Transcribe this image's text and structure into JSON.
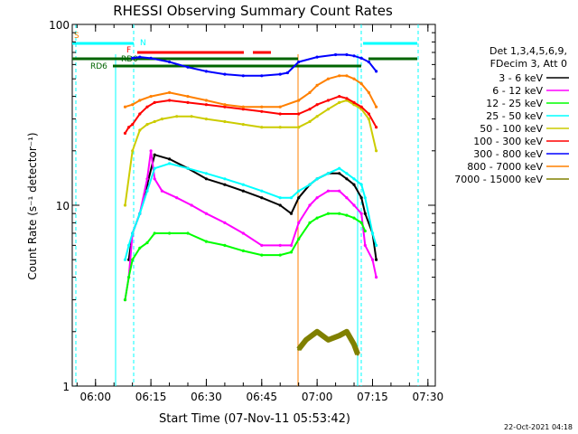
{
  "chart_data": {
    "type": "line",
    "title": "RHESSI Observing Summary Count Rates",
    "xlabel": "Start Time (07-Nov-11 05:53:42)",
    "ylabel": "Count Rate (s⁻¹ detector⁻¹)",
    "y_scale": "log",
    "ylim": [
      1,
      100
    ],
    "xlim": [
      "05:53:42",
      "07:32:00"
    ],
    "x_ticks": [
      "06:00",
      "06:15",
      "06:30",
      "06:45",
      "07:00",
      "07:15",
      "07:30"
    ],
    "y_ticks": [
      "1",
      "10",
      "100"
    ],
    "grid": false,
    "legend_position": "right",
    "legend_header": [
      "Det 1,3,4,5,6,9,",
      "FDecim 3, Att 0"
    ],
    "series": [
      {
        "name": "3 - 6 keV",
        "color": "#000000",
        "x": [
          "06:09",
          "06:10",
          "06:12",
          "06:14",
          "06:16",
          "06:20",
          "06:25",
          "06:30",
          "06:35",
          "06:40",
          "06:45",
          "06:50",
          "06:53",
          "06:55",
          "06:58",
          "07:00",
          "07:03",
          "07:06",
          "07:08",
          "07:10",
          "07:12",
          "07:13",
          "07:15",
          "07:16"
        ],
        "y": [
          5,
          7,
          9,
          13,
          19,
          18,
          16,
          14,
          13,
          12,
          11,
          10,
          9,
          11,
          13,
          14,
          15,
          15,
          14,
          13,
          11,
          9,
          7,
          5
        ]
      },
      {
        "name": "6 - 12 keV",
        "color": "#ff00ff",
        "x": [
          "06:08",
          "06:09",
          "06:10",
          "06:12",
          "06:14",
          "06:15",
          "06:16",
          "06:18",
          "06:22",
          "06:26",
          "06:30",
          "06:35",
          "06:40",
          "06:45",
          "06:50",
          "06:53",
          "06:55",
          "06:58",
          "07:00",
          "07:03",
          "07:06",
          "07:08",
          "07:10",
          "07:12",
          "07:13",
          "07:15",
          "07:16"
        ],
        "y": [
          3,
          4,
          7,
          9,
          14,
          20,
          14,
          12,
          11,
          10,
          9,
          8,
          7,
          6,
          6,
          6,
          8,
          10,
          11,
          12,
          12,
          11,
          10,
          9,
          6,
          5,
          4
        ]
      },
      {
        "name": "12 - 25 keV",
        "color": "#00ff00",
        "x": [
          "06:08",
          "06:09",
          "06:10",
          "06:12",
          "06:14",
          "06:16",
          "06:20",
          "06:25",
          "06:30",
          "06:35",
          "06:40",
          "06:45",
          "06:50",
          "06:53",
          "06:55",
          "06:58",
          "07:00",
          "07:03",
          "07:06",
          "07:08",
          "07:10",
          "07:12",
          "07:13"
        ],
        "y": [
          3,
          4,
          5,
          5.8,
          6.2,
          7,
          7,
          7,
          6.3,
          6,
          5.6,
          5.3,
          5.3,
          5.5,
          6.5,
          8,
          8.5,
          9,
          9,
          8.8,
          8.5,
          8,
          7.2
        ]
      },
      {
        "name": "25 - 50 keV",
        "color": "#00ffff",
        "x": [
          "06:08",
          "06:09",
          "06:10",
          "06:12",
          "06:14",
          "06:16",
          "06:20",
          "06:25",
          "06:30",
          "06:35",
          "06:40",
          "06:45",
          "06:50",
          "06:53",
          "06:55",
          "06:58",
          "07:00",
          "07:03",
          "07:06",
          "07:08",
          "07:10",
          "07:12",
          "07:13",
          "07:15",
          "07:16"
        ],
        "y": [
          5,
          6,
          7,
          9,
          12,
          16,
          17,
          16,
          15,
          14,
          13,
          12,
          11,
          11,
          12,
          13,
          14,
          15,
          16,
          15,
          14,
          13,
          11,
          7,
          6
        ]
      },
      {
        "name": "50 - 100 keV",
        "color": "#cccc00",
        "x": [
          "06:08",
          "06:10",
          "06:12",
          "06:14",
          "06:16",
          "06:18",
          "06:22",
          "06:26",
          "06:30",
          "06:35",
          "06:40",
          "06:45",
          "06:50",
          "06:55",
          "06:58",
          "07:00",
          "07:03",
          "07:06",
          "07:08",
          "07:10",
          "07:12",
          "07:14",
          "07:16"
        ],
        "y": [
          10,
          20,
          26,
          28,
          29,
          30,
          31,
          31,
          30,
          29,
          28,
          27,
          27,
          27,
          29,
          31,
          34,
          37,
          38,
          36,
          34,
          30,
          20
        ]
      },
      {
        "name": "100 - 300 keV",
        "color": "#ff0000",
        "x": [
          "06:08",
          "06:09",
          "06:10",
          "06:12",
          "06:14",
          "06:16",
          "06:20",
          "06:25",
          "06:30",
          "06:35",
          "06:40",
          "06:45",
          "06:50",
          "06:55",
          "06:58",
          "07:00",
          "07:03",
          "07:06",
          "07:08",
          "07:10",
          "07:12",
          "07:14",
          "07:16"
        ],
        "y": [
          25,
          27,
          28,
          32,
          35,
          37,
          38,
          37,
          36,
          35,
          34,
          33,
          32,
          32,
          34,
          36,
          38,
          40,
          39,
          37,
          35,
          32,
          27
        ]
      },
      {
        "name": "300 - 800 keV",
        "color": "#0000ff",
        "x": [
          "06:10",
          "06:12",
          "06:15",
          "06:20",
          "06:25",
          "06:30",
          "06:35",
          "06:40",
          "06:45",
          "06:50",
          "06:52",
          "06:55",
          "07:00",
          "07:05",
          "07:08",
          "07:10",
          "07:12",
          "07:14",
          "07:16"
        ],
        "y": [
          65,
          66,
          65,
          62,
          58,
          55,
          53,
          52,
          52,
          53,
          54,
          62,
          66,
          68,
          68,
          67,
          65,
          62,
          55
        ]
      },
      {
        "name": "800 - 7000 keV",
        "color": "#ff8000",
        "x": [
          "06:08",
          "06:10",
          "06:12",
          "06:15",
          "06:20",
          "06:25",
          "06:30",
          "06:35",
          "06:40",
          "06:45",
          "06:50",
          "06:55",
          "06:58",
          "07:00",
          "07:03",
          "07:06",
          "07:08",
          "07:10",
          "07:12",
          "07:14",
          "07:16"
        ],
        "y": [
          35,
          36,
          38,
          40,
          42,
          40,
          38,
          36,
          35,
          35,
          35,
          38,
          42,
          46,
          50,
          52,
          52,
          50,
          47,
          42,
          35
        ]
      },
      {
        "name": "7000 - 15000 keV",
        "color": "#808000",
        "x": [
          "06:55",
          "06:57",
          "07:00",
          "07:03",
          "07:06",
          "07:08",
          "07:10",
          "07:11"
        ],
        "y": [
          1.6,
          1.8,
          2.0,
          1.8,
          1.9,
          2.0,
          1.7,
          1.5
        ]
      }
    ],
    "annotations": [
      {
        "text": "S",
        "color": "#ff8000"
      },
      {
        "text": "F",
        "color": "#ff0000"
      },
      {
        "text": "RD0",
        "color": "#006400"
      },
      {
        "text": "RD6",
        "color": "#006400"
      },
      {
        "text": "N",
        "color": "#00ffff"
      }
    ],
    "footer_date": "22-Oct-2021 04:18"
  }
}
